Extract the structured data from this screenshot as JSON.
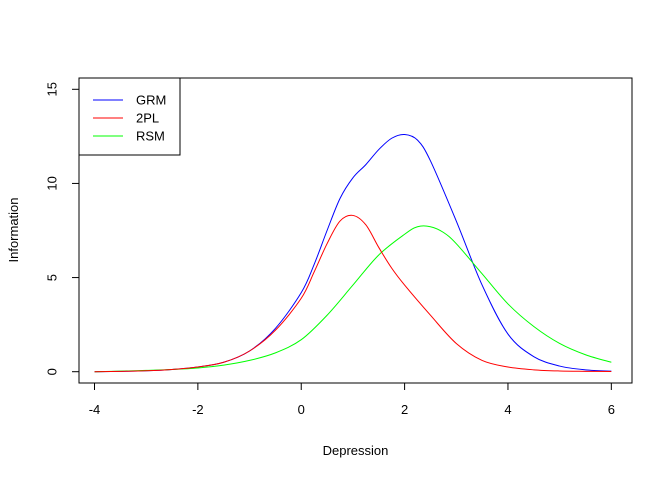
{
  "chart_data": {
    "type": "line",
    "title": "",
    "xlabel": "Depression",
    "ylabel": "Information",
    "xlim": [
      -4.3,
      6.4
    ],
    "ylim": [
      -0.6,
      15.6
    ],
    "xticks": [
      "-4",
      "-2",
      "0",
      "2",
      "4",
      "6"
    ],
    "yticks": [
      "0",
      "5",
      "10",
      "15"
    ],
    "grid": false,
    "legend_position": "top-left",
    "series": [
      {
        "name": "GRM",
        "color": "#0000ff",
        "x": [
          -4,
          -3.5,
          -3,
          -2.5,
          -2,
          -1.5,
          -1,
          -0.5,
          0,
          0.25,
          0.5,
          0.75,
          1,
          1.25,
          1.5,
          1.75,
          2,
          2.25,
          2.5,
          3,
          3.5,
          4,
          4.5,
          5,
          5.5,
          6
        ],
        "y": [
          0.0,
          0.02,
          0.05,
          0.12,
          0.25,
          0.5,
          1.1,
          2.3,
          4.2,
          5.7,
          7.5,
          9.2,
          10.3,
          11.0,
          11.8,
          12.4,
          12.6,
          12.3,
          11.2,
          8.0,
          4.6,
          2.0,
          0.8,
          0.3,
          0.1,
          0.03
        ]
      },
      {
        "name": "2PL",
        "color": "#ff0000",
        "x": [
          -4,
          -3.5,
          -3,
          -2.5,
          -2,
          -1.5,
          -1,
          -0.5,
          0,
          0.25,
          0.5,
          0.75,
          1,
          1.25,
          1.5,
          1.75,
          2,
          2.5,
          3,
          3.5,
          4,
          4.5,
          5,
          5.5,
          6
        ],
        "y": [
          0.0,
          0.02,
          0.05,
          0.12,
          0.25,
          0.5,
          1.1,
          2.2,
          3.9,
          5.3,
          6.8,
          8.0,
          8.3,
          7.8,
          6.6,
          5.5,
          4.6,
          3.0,
          1.5,
          0.6,
          0.25,
          0.1,
          0.04,
          0.02,
          0.01
        ]
      },
      {
        "name": "RSM",
        "color": "#00ff00",
        "x": [
          -4,
          -3.5,
          -3,
          -2.5,
          -2,
          -1.5,
          -1,
          -0.5,
          0,
          0.5,
          1,
          1.5,
          2,
          2.25,
          2.5,
          2.75,
          3,
          3.5,
          4,
          4.5,
          5,
          5.5,
          6
        ],
        "y": [
          0.0,
          0.03,
          0.07,
          0.12,
          0.2,
          0.35,
          0.6,
          1.0,
          1.7,
          3.0,
          4.6,
          6.2,
          7.3,
          7.7,
          7.7,
          7.4,
          6.8,
          5.2,
          3.6,
          2.4,
          1.5,
          0.9,
          0.5
        ]
      }
    ]
  }
}
